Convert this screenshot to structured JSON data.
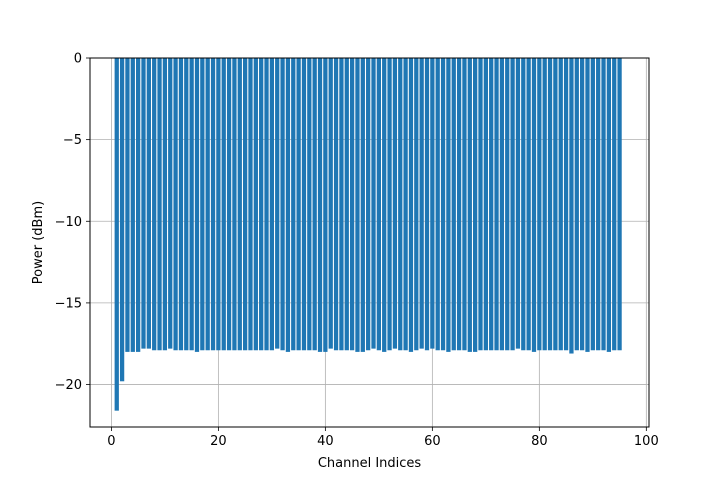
{
  "chart_data": {
    "type": "bar",
    "title": "",
    "xlabel": "Channel Indices",
    "ylabel": "Power (dBm)",
    "xlim": [
      -4,
      100.5
    ],
    "ylim": [
      -22.6,
      0
    ],
    "xticks": [
      0,
      20,
      40,
      60,
      80,
      100
    ],
    "xtick_labels": [
      "0",
      "20",
      "40",
      "60",
      "80",
      "100"
    ],
    "yticks": [
      0,
      -5,
      -10,
      -15,
      -20
    ],
    "ytick_labels": [
      "0",
      "−5",
      "−10",
      "−15",
      "−20"
    ],
    "grid": true,
    "bar_color": "#1f77b4",
    "x": [
      1,
      2,
      3,
      4,
      5,
      6,
      7,
      8,
      9,
      10,
      11,
      12,
      13,
      14,
      15,
      16,
      17,
      18,
      19,
      20,
      21,
      22,
      23,
      24,
      25,
      26,
      27,
      28,
      29,
      30,
      31,
      32,
      33,
      34,
      35,
      36,
      37,
      38,
      39,
      40,
      41,
      42,
      43,
      44,
      45,
      46,
      47,
      48,
      49,
      50,
      51,
      52,
      53,
      54,
      55,
      56,
      57,
      58,
      59,
      60,
      61,
      62,
      63,
      64,
      65,
      66,
      67,
      68,
      69,
      70,
      71,
      72,
      73,
      74,
      75,
      76,
      77,
      78,
      79,
      80,
      81,
      82,
      83,
      84,
      85,
      86,
      87,
      88,
      89,
      90,
      91,
      92,
      93,
      94,
      95
    ],
    "values": [
      -21.6,
      -19.8,
      -18.0,
      -18.0,
      -18.0,
      -17.8,
      -17.8,
      -17.9,
      -17.9,
      -17.9,
      -17.8,
      -17.9,
      -17.9,
      -17.9,
      -17.9,
      -18.0,
      -17.9,
      -17.9,
      -17.9,
      -17.9,
      -17.9,
      -17.9,
      -17.9,
      -17.9,
      -17.9,
      -17.9,
      -17.9,
      -17.9,
      -17.9,
      -17.9,
      -17.8,
      -17.9,
      -18.0,
      -17.9,
      -17.9,
      -17.9,
      -17.9,
      -17.9,
      -18.0,
      -18.0,
      -17.8,
      -17.9,
      -17.9,
      -17.9,
      -17.9,
      -18.0,
      -18.0,
      -17.9,
      -17.8,
      -17.9,
      -18.0,
      -17.9,
      -17.8,
      -17.9,
      -17.9,
      -18.0,
      -17.9,
      -17.8,
      -17.9,
      -17.8,
      -17.9,
      -17.9,
      -18.0,
      -17.9,
      -17.9,
      -17.9,
      -18.0,
      -18.0,
      -17.9,
      -17.9,
      -17.9,
      -17.9,
      -17.9,
      -17.9,
      -17.9,
      -17.8,
      -17.9,
      -17.9,
      -18.0,
      -17.9,
      -17.9,
      -17.9,
      -17.9,
      -17.9,
      -17.9,
      -18.1,
      -17.9,
      -17.9,
      -18.0,
      -17.9,
      -17.9,
      -17.9,
      -18.0,
      -17.9,
      -17.9
    ]
  }
}
